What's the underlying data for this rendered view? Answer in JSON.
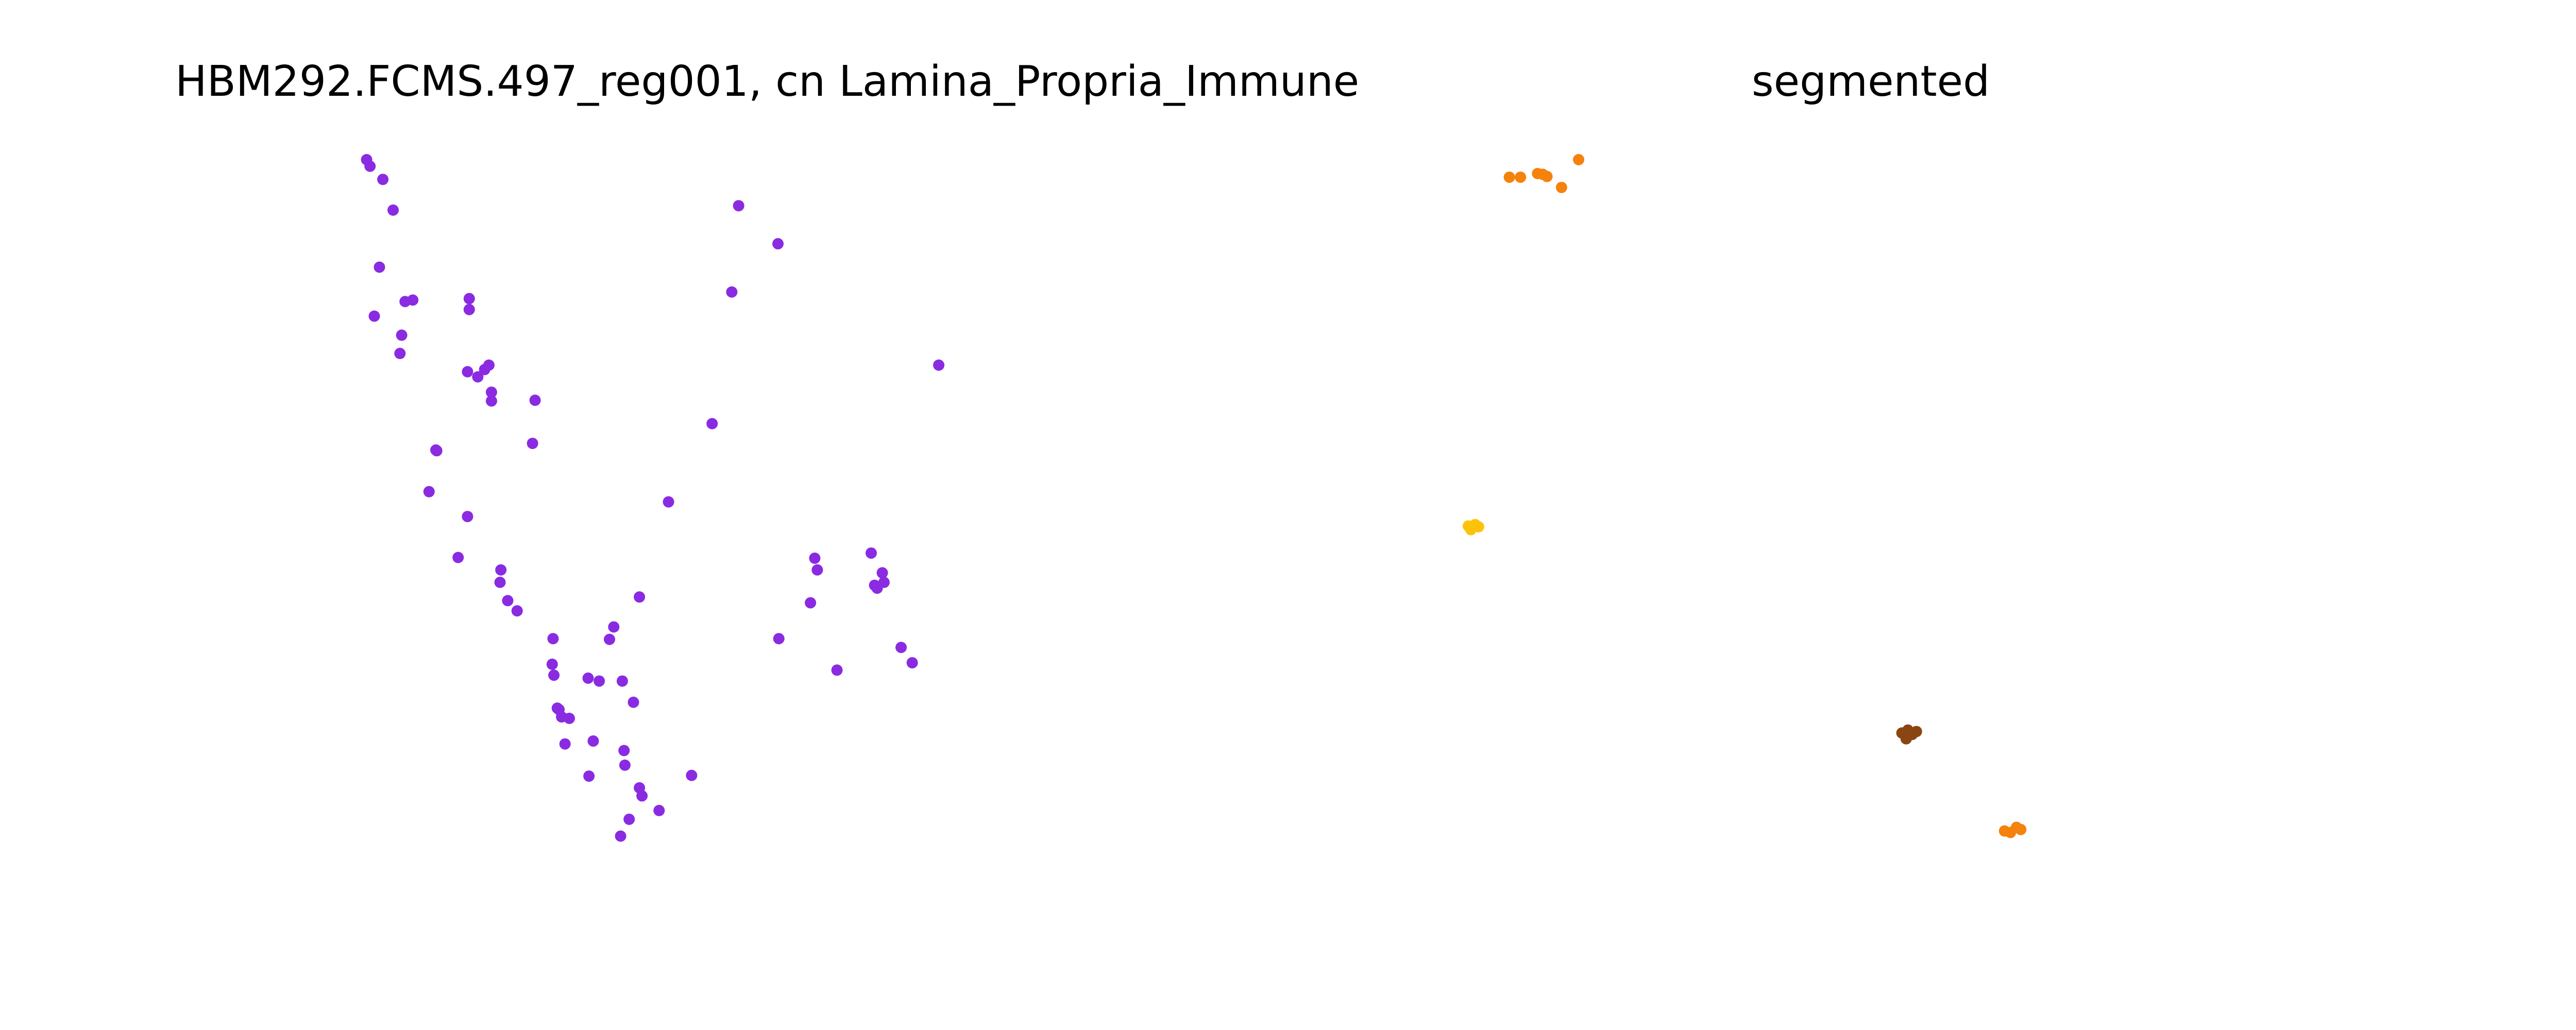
{
  "chart_data": [
    {
      "type": "scatter",
      "title": "HBM292.FCMS.497_reg001, cn Lamina_Propria_Immune",
      "axes_visible": false,
      "xlim": [
        0,
        1000
      ],
      "ylim": [
        0,
        1000
      ],
      "series": [
        {
          "color": "#8a2be2",
          "points": [
            [
              13,
              0
            ],
            [
              17,
              9
            ],
            [
              32,
              27
            ],
            [
              44,
              69
            ],
            [
              28,
              147
            ],
            [
              22,
              214
            ],
            [
              58,
              194
            ],
            [
              67,
              192
            ],
            [
              54,
              240
            ],
            [
              52,
              265
            ],
            [
              133,
              190
            ],
            [
              133,
              205
            ],
            [
              131,
              290
            ],
            [
              151,
              287
            ],
            [
              143,
              297
            ],
            [
              156,
              281
            ],
            [
              159,
              318
            ],
            [
              159,
              330
            ],
            [
              210,
              329
            ],
            [
              207,
              388
            ],
            [
              95,
              398
            ],
            [
              94,
              397
            ],
            [
              86,
              454
            ],
            [
              131,
              488
            ],
            [
              120,
              544
            ],
            [
              170,
              561
            ],
            [
              169,
              578
            ],
            [
              178,
              603
            ],
            [
              189,
              617
            ],
            [
              231,
              655
            ],
            [
              230,
              690
            ],
            [
              232,
              705
            ],
            [
              236,
              750
            ],
            [
              238,
              752
            ],
            [
              250,
              764
            ],
            [
              241,
              762
            ],
            [
              245,
              799
            ],
            [
              302,
              639
            ],
            [
              297,
              656
            ],
            [
              285,
              713
            ],
            [
              272,
              709
            ],
            [
              278,
              795
            ],
            [
              273,
              843
            ],
            [
              312,
              713
            ],
            [
              325,
              742
            ],
            [
              314,
              808
            ],
            [
              315,
              828
            ],
            [
              332,
              859
            ],
            [
              335,
              870
            ],
            [
              320,
              902
            ],
            [
              310,
              925
            ],
            [
              355,
              890
            ],
            [
              393,
              842
            ],
            [
              366,
              468
            ],
            [
              448,
              63
            ],
            [
              494,
              115
            ],
            [
              440,
              181
            ],
            [
              495,
              655
            ],
            [
              540,
              561
            ],
            [
              537,
              545
            ],
            [
              532,
              606
            ],
            [
              603,
              538
            ],
            [
              610,
              586
            ],
            [
              607,
              582
            ],
            [
              616,
              565
            ],
            [
              618,
              578
            ],
            [
              638,
              667
            ],
            [
              651,
              688
            ],
            [
              563,
              698
            ],
            [
              682,
              281
            ],
            [
              417,
              361
            ],
            [
              332,
              598
            ]
          ]
        }
      ]
    },
    {
      "type": "scatter",
      "title": "segmented",
      "axes_visible": false,
      "xlim": [
        0,
        1000
      ],
      "ylim": [
        0,
        1000
      ],
      "series": [
        {
          "color": "#f5820d",
          "points": [
            [
              54,
              24
            ],
            [
              67,
              24
            ],
            [
              87,
              19
            ],
            [
              93,
              20
            ],
            [
              98,
              23
            ],
            [
              115,
              38
            ],
            [
              135,
              0
            ],
            [
              633,
              918
            ],
            [
              640,
              920
            ],
            [
              647,
              913
            ],
            [
              652,
              916
            ]
          ]
        },
        {
          "color": "#ffc20a",
          "points": [
            [
              6,
              501
            ],
            [
              9,
              506
            ],
            [
              14,
              499
            ],
            [
              18,
              502
            ]
          ]
        },
        {
          "color": "#8b4513",
          "points": [
            [
              513,
              784
            ],
            [
              520,
              780
            ],
            [
              525,
              786
            ],
            [
              530,
              782
            ],
            [
              518,
              792
            ]
          ]
        }
      ]
    }
  ]
}
